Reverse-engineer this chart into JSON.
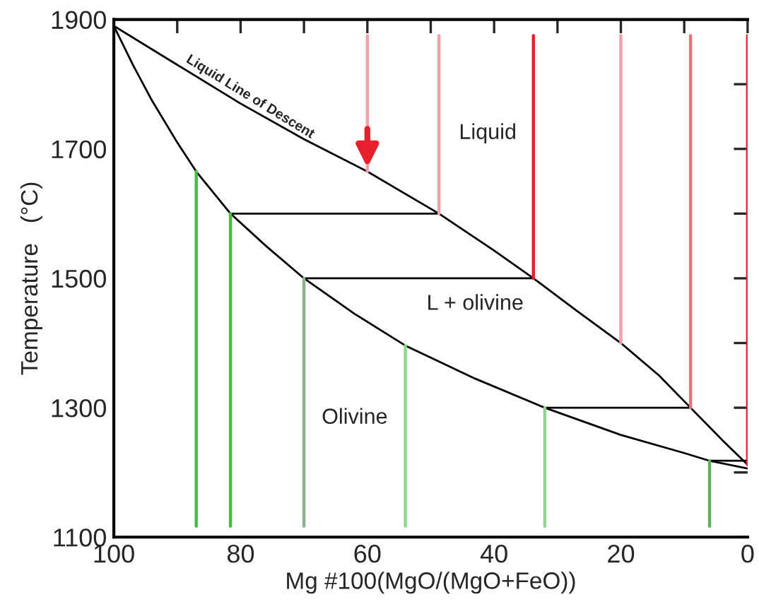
{
  "chart_data": {
    "type": "line",
    "xlabel": "Mg #100(MgO/(MgO+FeO))",
    "ylabel": "Temperature   (°C)",
    "xlim": [
      100,
      0
    ],
    "ylim": [
      1100,
      1900
    ],
    "xticks": [
      100,
      {
        "value": 90,
        "label": null
      },
      80,
      {
        "value": 70,
        "label": null
      },
      60,
      {
        "value": 50,
        "label": null
      },
      40,
      {
        "value": 30,
        "label": null
      },
      20,
      {
        "value": 10,
        "label": null
      },
      0
    ],
    "yticks": [
      1100,
      {
        "value": 1200,
        "label": null
      },
      1300,
      {
        "value": 1400,
        "label": null
      },
      1500,
      {
        "value": 1600,
        "label": null
      },
      1700,
      {
        "value": 1800,
        "label": null
      },
      1900
    ],
    "grid": false,
    "legend": false,
    "series": [
      {
        "color": "#000000",
        "x": [
          100,
          90,
          80,
          70,
          60,
          48.7,
          40,
          33.8,
          27,
          20,
          14,
          9,
          4,
          0
        ],
        "values": [
          1890,
          1830,
          1770,
          1715,
          1665,
          1600,
          1543,
          1500,
          1450,
          1400,
          1350,
          1300,
          1250,
          1212
        ]
      },
      {
        "color": "#000000",
        "x": [
          100,
          97,
          94,
          90,
          87,
          81.6,
          76,
          70,
          62,
          54,
          43,
          32,
          20,
          10,
          6,
          0
        ],
        "values": [
          1890,
          1830,
          1775,
          1710,
          1665,
          1600,
          1550,
          1500,
          1445,
          1396,
          1345,
          1300,
          1258,
          1230,
          1218,
          1206
        ]
      },
      {
        "color": "#000000",
        "x": [
          81.6,
          48.7
        ],
        "values": [
          1600,
          1600
        ]
      },
      {
        "color": "#000000",
        "x": [
          70,
          33.8
        ],
        "values": [
          1500,
          1500
        ]
      },
      {
        "color": "#000000",
        "x": [
          32,
          9
        ],
        "values": [
          1300,
          1300
        ]
      },
      {
        "color": "#000000",
        "x": [
          6,
          0
        ],
        "values": [
          1218,
          1218
        ]
      },
      {
        "color": "#f4a0a8",
        "x": [
          60,
          60
        ],
        "values": [
          1875,
          1665
        ]
      },
      {
        "color": "#f4a0a8",
        "x": [
          48.7,
          48.7
        ],
        "values": [
          1875,
          1600
        ]
      },
      {
        "color": "#e8202c",
        "x": [
          33.8,
          33.8
        ],
        "values": [
          1875,
          1500
        ]
      },
      {
        "color": "#f4a0a8",
        "x": [
          20,
          20
        ],
        "values": [
          1875,
          1400
        ]
      },
      {
        "color": "#f07078",
        "x": [
          9,
          9
        ],
        "values": [
          1875,
          1300
        ]
      },
      {
        "color": "#e8202c",
        "x": [
          0,
          0
        ],
        "values": [
          1875,
          1212
        ]
      },
      {
        "color": "#40c040",
        "x": [
          87,
          87
        ],
        "values": [
          1665,
          1117
        ]
      },
      {
        "color": "#40c040",
        "x": [
          81.6,
          81.6
        ],
        "values": [
          1600,
          1117
        ]
      },
      {
        "color": "#90b090",
        "x": [
          70,
          70
        ],
        "values": [
          1500,
          1117
        ]
      },
      {
        "color": "#90d890",
        "x": [
          54,
          54
        ],
        "values": [
          1396,
          1117
        ]
      },
      {
        "color": "#90d890",
        "x": [
          32,
          32
        ],
        "values": [
          1300,
          1117
        ]
      },
      {
        "color": "#60b060",
        "x": [
          6,
          6
        ],
        "values": [
          1218,
          1117
        ]
      }
    ],
    "annotations": [
      "Liquid Line of Descent",
      "Liquid",
      "L + olivine",
      "Olivine"
    ]
  }
}
